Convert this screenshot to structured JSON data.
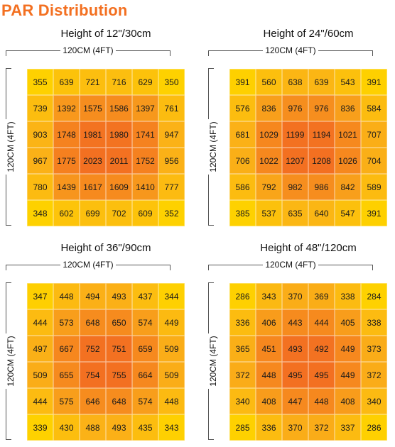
{
  "title": "PAR Distribution",
  "chart_data": [
    {
      "type": "heatmap",
      "title": "Height of 12\"/30cm",
      "xlabel": "120CM (4FT)",
      "ylabel": "120CM (4FT)",
      "rows": [
        [
          355,
          639,
          721,
          716,
          629,
          350
        ],
        [
          739,
          1392,
          1575,
          1586,
          1397,
          761
        ],
        [
          903,
          1748,
          1981,
          1980,
          1741,
          947
        ],
        [
          967,
          1775,
          2023,
          2011,
          1752,
          956
        ],
        [
          780,
          1439,
          1617,
          1609,
          1410,
          777
        ],
        [
          348,
          602,
          699,
          702,
          609,
          352
        ]
      ]
    },
    {
      "type": "heatmap",
      "title": "Height of 24\"/60cm",
      "xlabel": "120CM (4FT)",
      "ylabel": "120CM (4FT)",
      "rows": [
        [
          391,
          560,
          638,
          639,
          543,
          391
        ],
        [
          576,
          836,
          976,
          976,
          836,
          584
        ],
        [
          681,
          1029,
          1199,
          1194,
          1021,
          707
        ],
        [
          706,
          1022,
          1207,
          1208,
          1026,
          704
        ],
        [
          586,
          792,
          982,
          986,
          842,
          589
        ],
        [
          385,
          537,
          635,
          640,
          547,
          391
        ]
      ]
    },
    {
      "type": "heatmap",
      "title": "Height of 36\"/90cm",
      "xlabel": "120CM (4FT)",
      "ylabel": "120CM (4FT)",
      "rows": [
        [
          347,
          448,
          494,
          493,
          437,
          344
        ],
        [
          444,
          573,
          648,
          650,
          574,
          449
        ],
        [
          497,
          667,
          752,
          751,
          659,
          509
        ],
        [
          509,
          655,
          754,
          755,
          664,
          509
        ],
        [
          444,
          575,
          646,
          648,
          574,
          448
        ],
        [
          339,
          430,
          488,
          493,
          435,
          343
        ]
      ]
    },
    {
      "type": "heatmap",
      "title": "Height of 48\"/120cm",
      "xlabel": "120CM (4FT)",
      "ylabel": "120CM (4FT)",
      "rows": [
        [
          286,
          343,
          370,
          369,
          338,
          284
        ],
        [
          336,
          406,
          443,
          444,
          405,
          338
        ],
        [
          365,
          451,
          493,
          492,
          449,
          373
        ],
        [
          372,
          448,
          495,
          495,
          449,
          372
        ],
        [
          340,
          408,
          447,
          448,
          408,
          340
        ],
        [
          285,
          336,
          370,
          372,
          337,
          286
        ]
      ]
    }
  ],
  "colors": {
    "title": "#f37021",
    "low": "#fed100",
    "mid": "#fbb416",
    "high": "#f7941d",
    "peak": "#f37021"
  }
}
